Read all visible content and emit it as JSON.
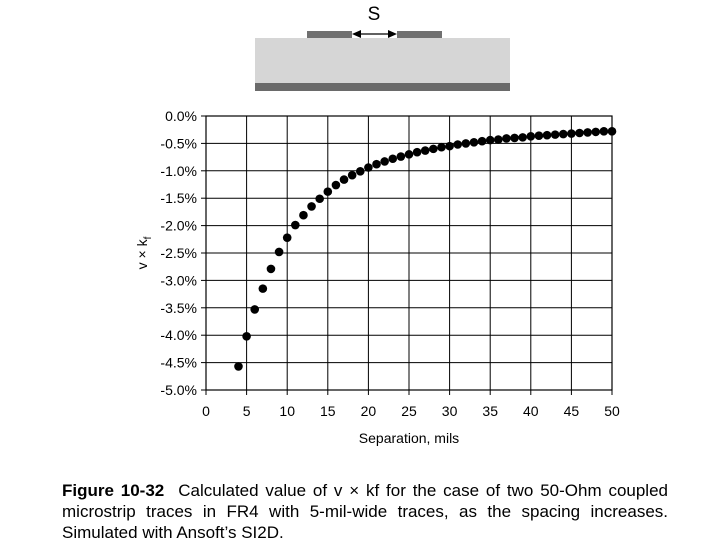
{
  "schematic": {
    "spacing_label": "S",
    "colors": {
      "substrate": "#d6d6d6",
      "trace": "#707070",
      "ground": "#6a6a6a"
    }
  },
  "chart_data": {
    "type": "scatter",
    "title": "",
    "xlabel": "Separation, mils",
    "ylabel": "v × kf",
    "xlim": [
      0,
      50
    ],
    "ylim": [
      -5.0,
      0.0
    ],
    "x_ticks": [
      "0",
      "5",
      "10",
      "15",
      "20",
      "25",
      "30",
      "35",
      "40",
      "45",
      "50"
    ],
    "y_ticks": [
      "0.0%",
      "-0.5%",
      "-1.0%",
      "-1.5%",
      "-2.0%",
      "-2.5%",
      "-3.0%",
      "-3.5%",
      "-4.0%",
      "-4.5%",
      "-5.0%"
    ],
    "grid": true,
    "marker_color": "#000000",
    "series": [
      {
        "x": [
          4,
          5,
          6,
          7,
          8,
          9,
          10,
          11,
          12,
          13,
          14,
          15,
          16,
          17,
          18,
          19,
          20,
          21,
          22,
          23,
          24,
          25,
          26,
          27,
          28,
          29,
          30,
          31,
          32,
          33,
          34,
          35,
          36,
          37,
          38,
          39,
          40,
          41,
          42,
          43,
          44,
          45,
          46,
          47,
          48,
          49,
          50
        ],
        "y": [
          -4.57,
          -4.02,
          -3.53,
          -3.15,
          -2.79,
          -2.48,
          -2.22,
          -1.99,
          -1.81,
          -1.65,
          -1.51,
          -1.38,
          -1.26,
          -1.16,
          -1.08,
          -1.01,
          -0.94,
          -0.88,
          -0.83,
          -0.78,
          -0.74,
          -0.7,
          -0.66,
          -0.63,
          -0.6,
          -0.57,
          -0.55,
          -0.52,
          -0.5,
          -0.48,
          -0.46,
          -0.44,
          -0.43,
          -0.41,
          -0.4,
          -0.39,
          -0.37,
          -0.36,
          -0.35,
          -0.34,
          -0.33,
          -0.32,
          -0.31,
          -0.3,
          -0.29,
          -0.28,
          -0.28
        ]
      }
    ]
  },
  "caption": {
    "figure_number": "Figure 10-32",
    "text": "Calculated value of v × kf for the case of two 50-Ohm coupled microstrip traces in FR4 with 5-mil-wide traces, as the spacing increases. Simulated with Ansoft’s SI2D."
  }
}
